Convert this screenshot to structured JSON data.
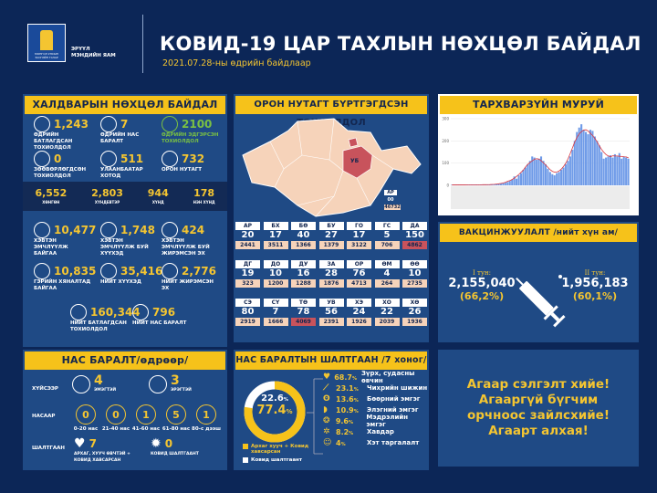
{
  "header": {
    "ministry_line1": "ЭРҮҮЛ",
    "ministry_line2": "МЭНДИЙН ЯАМ",
    "emblem_text": "МОНГОЛ УЛСЫН ЗАСГИЙН ГАЗАР",
    "title": "КОВИД-19 ЦАР ТАХЛЫН НӨХЦӨЛ БАЙДАЛ",
    "subtitle": "2021.07.28-ны  өдрийн байдлаар"
  },
  "colors": {
    "background": "#0c2657",
    "panel": "#1f4a85",
    "accent_yellow": "#f6c21a",
    "green": "#7ac043",
    "hot": "#c8535c",
    "peach": "#f6d3ba"
  },
  "infection": {
    "title": "ХАЛДВАРЫН НӨХЦӨЛ БАЙДАЛ",
    "daily_confirmed": {
      "value": "1,243",
      "label": "ӨДРИЙН БАТЛАГДСАН ТОХИОЛДОЛ",
      "icon": "lungs-icon"
    },
    "daily_deaths": {
      "value": "7",
      "label": "ӨДРИЙН НАС БАРАЛТ",
      "icon": "patient-icon"
    },
    "daily_recovered": {
      "value": "2100",
      "label": "ӨДРИЙН ЭДГЭРСЭН ТОХИОЛДОЛ",
      "icon": "recovered-icon"
    },
    "imported": {
      "value": "0",
      "label": "ЗӨӨВӨРЛӨГДСӨН ТОХИОЛДОЛ",
      "icon": "airplane-icon"
    },
    "ulaanbaatar": {
      "value": "511",
      "label": "УЛААНБААТАР ХОТОД",
      "icon": "monument-icon"
    },
    "local": {
      "value": "732",
      "label": "ОРОН НУТАГТ",
      "icon": "mongolia-map-icon"
    },
    "severity": [
      {
        "value": "6,552",
        "label": "ХӨНГӨН"
      },
      {
        "value": "2,803",
        "label": "ХҮНДЕВТЭР"
      },
      {
        "value": "944",
        "label": "ХҮНД"
      },
      {
        "value": "178",
        "label": "НЭН ХҮНД"
      }
    ],
    "hospitalized": {
      "value": "10,477",
      "label": "ХЭВТЭН ЭМЧЛҮҮЛЖ БАЙГАА"
    },
    "children_hosp": {
      "value": "1,748",
      "label": "ХЭВТЭН ЭМЧЛҮҮЛЖ БУЙ ХҮҮХЭД"
    },
    "pregnant_hosp": {
      "value": "424",
      "label": "ХЭВТЭН ЭМЧЛҮҮЛЖ БУЙ ЖИРЭМСЭН ЭХ"
    },
    "home_care": {
      "value": "10,835",
      "label": "ГЭРИЙН ХЯНАЛТАД БАЙГАА"
    },
    "children_total": {
      "value": "35,416",
      "label": "НИЙТ ХҮҮХЭД"
    },
    "pregnant_total": {
      "value": "2,776",
      "label": "НИЙТ ЖИРЭМСЭН ЭХ"
    },
    "total_confirmed": {
      "value": "160,344",
      "label": "НИЙТ БАТЛАГДСАН ТОХИОЛДОЛ"
    },
    "total_deaths": {
      "value": "796",
      "label": "НИЙТ НАС БАРАЛТ"
    }
  },
  "provinces": {
    "title": "ОРОН НУТАГТ БҮРТГЭГДСЭН ТОХИОЛДОЛ",
    "map_label_ub": "УБ",
    "legend": [
      {
        "sample": "АР"
      },
      {
        "sample": "00"
      },
      {
        "sample": "46732"
      }
    ],
    "rows": [
      [
        {
          "code": "АР",
          "daily": "20",
          "total": "2441"
        },
        {
          "code": "БХ",
          "daily": "17",
          "total": "3511"
        },
        {
          "code": "БӨ",
          "daily": "40",
          "total": "1366"
        },
        {
          "code": "БУ",
          "daily": "27",
          "total": "1379"
        },
        {
          "code": "ГО",
          "daily": "17",
          "total": "3122"
        },
        {
          "code": "ГС",
          "daily": "5",
          "total": "706"
        },
        {
          "code": "ДА",
          "daily": "150",
          "total": "4862",
          "hot": true
        }
      ],
      [
        {
          "code": "ДГ",
          "daily": "19",
          "total": "323"
        },
        {
          "code": "ДО",
          "daily": "10",
          "total": "1200"
        },
        {
          "code": "ДУ",
          "daily": "16",
          "total": "1288"
        },
        {
          "code": "ЗА",
          "daily": "28",
          "total": "1876"
        },
        {
          "code": "ОР",
          "daily": "76",
          "total": "4713"
        },
        {
          "code": "ӨМ",
          "daily": "4",
          "total": "264"
        },
        {
          "code": "ӨӨ",
          "daily": "10",
          "total": "2735"
        }
      ],
      [
        {
          "code": "СЭ",
          "daily": "80",
          "total": "2919"
        },
        {
          "code": "СҮ",
          "daily": "7",
          "total": "1666"
        },
        {
          "code": "ТӨ",
          "daily": "78",
          "total": "4069",
          "hot": true
        },
        {
          "code": "УВ",
          "daily": "56",
          "total": "2391"
        },
        {
          "code": "ХЭ",
          "daily": "24",
          "total": "1926"
        },
        {
          "code": "ХО",
          "daily": "22",
          "total": "2039"
        },
        {
          "code": "ХӨ",
          "daily": "26",
          "total": "1936"
        }
      ]
    ]
  },
  "chart_data": {
    "type": "bar",
    "title": "ТАРХВАРЗҮЙН МУРУЙ",
    "ylim": [
      0,
      300
    ],
    "yticks": [
      "0",
      "100",
      "200",
      "300"
    ],
    "grid": true,
    "series": [
      {
        "type": "bar",
        "color": "#6f9be8"
      },
      {
        "type": "line",
        "note": "moving average",
        "color": "#d9363e"
      }
    ],
    "values": [
      2,
      3,
      2,
      2,
      3,
      2,
      2,
      3,
      2,
      2,
      3,
      3,
      2,
      3,
      2,
      3,
      3,
      4,
      3,
      4,
      5,
      6,
      8,
      10,
      12,
      15,
      20,
      25,
      40,
      30,
      45,
      55,
      70,
      80,
      95,
      110,
      130,
      125,
      115,
      120,
      130,
      110,
      95,
      75,
      60,
      50,
      45,
      55,
      60,
      70,
      80,
      95,
      110,
      130,
      160,
      200,
      240,
      260,
      275,
      250,
      240,
      230,
      250,
      245,
      220,
      200,
      180,
      150,
      120,
      125,
      130,
      135,
      125,
      140,
      130,
      145,
      120,
      130,
      125,
      120
    ]
  },
  "vaccination": {
    "title": "ВАКЦИНЖУУЛАЛТ /нийт хүн ам/",
    "dose1": {
      "label": "I тун:",
      "value": "2,155,040",
      "pct": "(66,2%)"
    },
    "dose2": {
      "label": "II тун:",
      "value": "1,956,183",
      "pct": "(60,1%)"
    }
  },
  "deaths_daily": {
    "title": "НАС БАРАЛТ/өдрөөр/",
    "by_sex_label": "ХҮЙСЭЭР",
    "female": {
      "value": "4",
      "label": "ЭМЭГТЭЙ"
    },
    "male": {
      "value": "3",
      "label": "ЭРЭГТЭЙ"
    },
    "by_age_label": "НАСААР",
    "ages": [
      {
        "value": "0",
        "label": "0-20 нас"
      },
      {
        "value": "0",
        "label": "21-40 нас"
      },
      {
        "value": "1",
        "label": "41-60 нас"
      },
      {
        "value": "5",
        "label": "61-80 нас"
      },
      {
        "value": "1",
        "label": "80-с дээш"
      }
    ],
    "by_cause_label": "ШАЛТГААН",
    "comorbid": {
      "value": "7",
      "label": "АРХАГ, ХУУЧ ӨВЧТЭЙ + КОВИД ХАВСАРСАН"
    },
    "covid_only": {
      "value": "0",
      "label": "КОВИД ШАЛТГААНТ"
    }
  },
  "death_causes": {
    "title": "НАС БАРАЛТЫН ШАЛТГААН /7 хоног/",
    "donut": {
      "covid_only_pct": 22.6,
      "comorbid_pct": 77.4,
      "covid_only_text": "22.6",
      "comorbid_text": "77.4",
      "unit": "%"
    },
    "legend": [
      {
        "label": "Архаг хууч + Ковид хавсарсан",
        "color": "#f6c21a"
      },
      {
        "label": "Ковид шалтгаант",
        "color": "#ffffff"
      }
    ],
    "items": [
      {
        "pct": "68.7",
        "label": "Зүрх, судасны өвчин",
        "icon": "heart-icon"
      },
      {
        "pct": "23.1",
        "label": "Чихрийн шижин",
        "icon": "syringe-icon"
      },
      {
        "pct": "13.6",
        "label": "Бөөрний эмгэг",
        "icon": "kidney-icon"
      },
      {
        "pct": "10.9",
        "label": "Элэгний эмгэг",
        "icon": "liver-icon"
      },
      {
        "pct": "9.6",
        "label": "Мэдрэлийн эмгэг",
        "icon": "brain-icon"
      },
      {
        "pct": "8.2",
        "label": "Хавдар",
        "icon": "cancer-icon"
      },
      {
        "pct": "4",
        "label": "Хэт таргалалт",
        "icon": "obesity-icon"
      }
    ],
    "pct_unit": "%"
  },
  "message": {
    "lines": [
      "Агаар сэлгэлт хийе!",
      "Агааргүй бүгчим",
      "орчноос зайлсхийе!",
      "Агаарт алхая!"
    ]
  }
}
